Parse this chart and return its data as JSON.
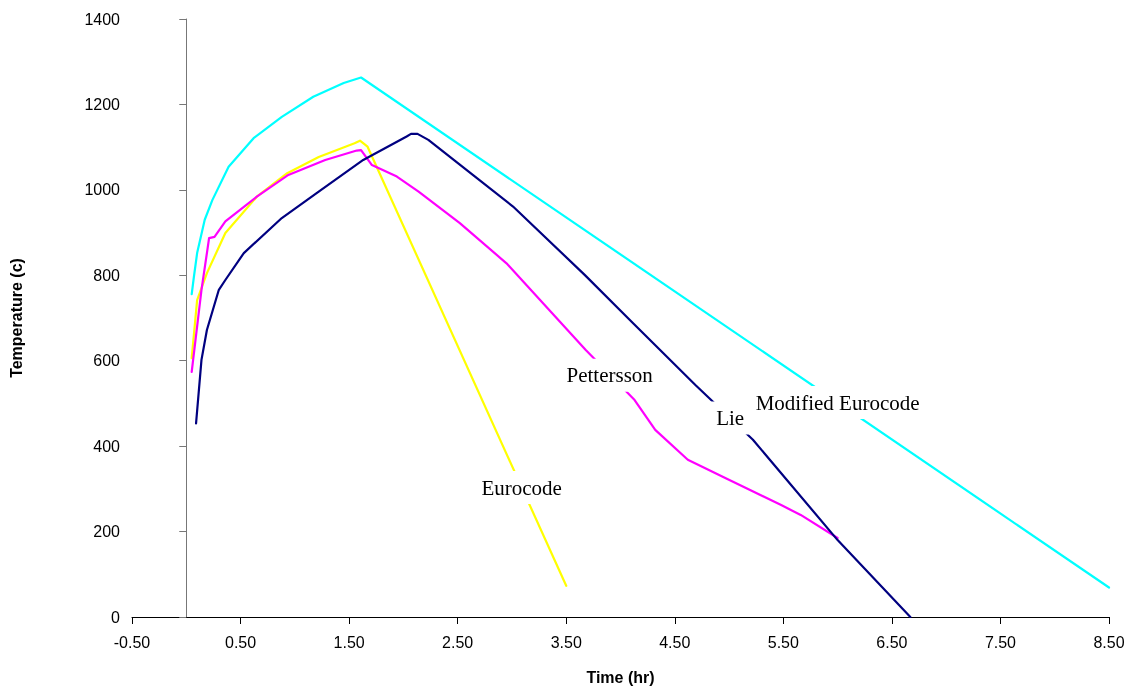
{
  "chart_data": {
    "type": "line",
    "xlabel": "Time (hr)",
    "ylabel": "Temperature (c)",
    "xlim": [
      -0.5,
      8.5
    ],
    "xticks": [
      {
        "value": -0.5,
        "label": "-0.50"
      },
      {
        "value": 0.5,
        "label": "0.50"
      },
      {
        "value": 1.5,
        "label": "1.50"
      },
      {
        "value": 2.5,
        "label": "2.50"
      },
      {
        "value": 3.5,
        "label": "3.50"
      },
      {
        "value": 4.5,
        "label": "4.50"
      },
      {
        "value": 5.5,
        "label": "5.50"
      },
      {
        "value": 6.5,
        "label": "6.50"
      },
      {
        "value": 7.5,
        "label": "7.50"
      },
      {
        "value": 8.5,
        "label": "8.50"
      }
    ],
    "ylim": [
      0,
      1400
    ],
    "yticks": [
      0,
      200,
      400,
      600,
      800,
      1000,
      1200,
      1400
    ],
    "grid": false,
    "marker": "none",
    "line_style": "solid",
    "series": [
      {
        "color": "#00ffff",
        "x": [
          0.05,
          0.07,
          0.1,
          0.17,
          0.24,
          0.39,
          0.62,
          0.88,
          1.17,
          1.45,
          1.61,
          8.5
        ],
        "values": [
          756,
          796,
          852,
          930,
          976,
          1054,
          1121,
          1171,
          1218,
          1250,
          1263,
          69
        ]
      },
      {
        "color": "#ffff00",
        "x": [
          0.05,
          0.1,
          0.19,
          0.36,
          0.65,
          0.93,
          1.22,
          1.55,
          1.6,
          1.67,
          3.5
        ],
        "values": [
          606,
          742,
          805,
          899,
          984,
          1039,
          1077,
          1109,
          1115,
          1101,
          73
        ]
      },
      {
        "color": "#ff00ff",
        "x": [
          0.05,
          0.14,
          0.19,
          0.21,
          0.26,
          0.36,
          0.65,
          0.94,
          1.28,
          1.57,
          1.61,
          1.71,
          1.94,
          2.14,
          2.52,
          2.95,
          3.68,
          4.13,
          4.32,
          4.62,
          4.97,
          5.48,
          5.66,
          6.0
        ],
        "values": [
          574,
          766,
          852,
          887,
          890,
          926,
          984,
          1035,
          1070,
          1092,
          1093,
          1058,
          1031,
          996,
          922,
          828,
          625,
          508,
          438,
          368,
          325,
          262,
          239,
          185
        ]
      },
      {
        "color": "#000080",
        "x": [
          0.09,
          0.14,
          0.19,
          0.3,
          0.36,
          0.53,
          0.88,
          1.22,
          1.63,
          2.03,
          2.07,
          2.13,
          2.23,
          2.66,
          3.01,
          3.67,
          4.1,
          4.69,
          5.22,
          6.0,
          6.67
        ],
        "values": [
          453,
          602,
          672,
          766,
          789,
          852,
          934,
          996,
          1070,
          1125,
          1131,
          1131,
          1117,
          1031,
          961,
          801,
          692,
          543,
          415,
          180,
          0
        ]
      }
    ],
    "annotations": [
      {
        "text": "Pettersson",
        "x": 3.9,
        "y": 566
      },
      {
        "text": "Lie",
        "x": 5.01,
        "y": 466
      },
      {
        "text": "Modified Eurocode",
        "x": 6.0,
        "y": 502
      },
      {
        "text": "Eurocode",
        "x": 3.09,
        "y": 303
      }
    ]
  }
}
